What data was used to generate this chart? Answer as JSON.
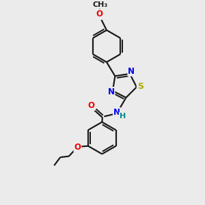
{
  "bg_color": "#ebebeb",
  "bond_color": "#1a1a1a",
  "bond_width": 1.6,
  "atom_colors": {
    "N": "#0000ee",
    "O": "#ee0000",
    "S": "#aaaa00",
    "H": "#008888",
    "C": "#1a1a1a"
  },
  "font_size": 8.5
}
